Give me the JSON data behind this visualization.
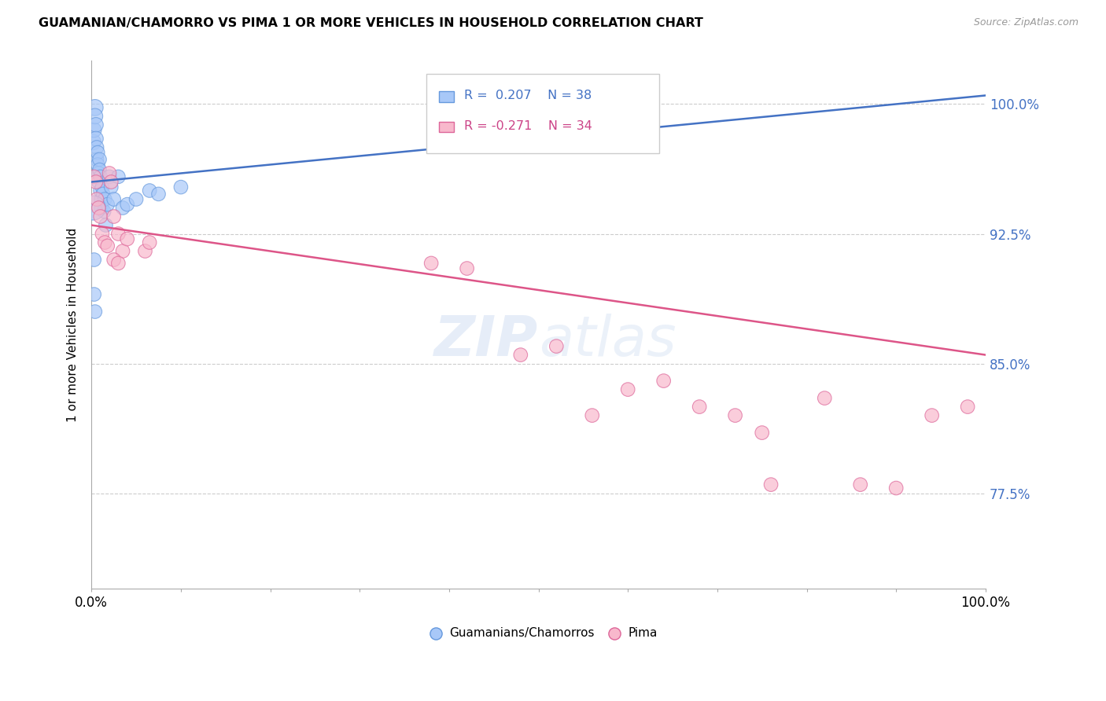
{
  "title": "GUAMANIAN/CHAMORRO VS PIMA 1 OR MORE VEHICLES IN HOUSEHOLD CORRELATION CHART",
  "source": "Source: ZipAtlas.com",
  "ylabel": "1 or more Vehicles in Household",
  "xlim": [
    0.0,
    1.0
  ],
  "ylim": [
    0.72,
    1.025
  ],
  "yticks": [
    0.775,
    0.85,
    0.925,
    1.0
  ],
  "ytick_labels": [
    "77.5%",
    "85.0%",
    "92.5%",
    "100.0%"
  ],
  "xticks": [
    0.0,
    0.1,
    0.2,
    0.3,
    0.4,
    0.5,
    0.6,
    0.7,
    0.8,
    0.9,
    1.0
  ],
  "xtick_labels": [
    "0.0%",
    "",
    "",
    "",
    "",
    "",
    "",
    "",
    "",
    "",
    "100.0%"
  ],
  "guamanian_color": "#a8c8f8",
  "guamanian_edge": "#6699dd",
  "pima_color": "#f8b8cc",
  "pima_edge": "#dd6699",
  "legend_blue_color": "#4472c4",
  "legend_pink_color": "#cc4488",
  "trendline_blue": "#4472c4",
  "trendline_pink": "#dd5588",
  "R_guamanian": 0.207,
  "N_guamanian": 38,
  "R_pima": -0.271,
  "N_pima": 34,
  "blue_trend_start": 0.955,
  "blue_trend_end": 1.005,
  "pink_trend_start": 0.93,
  "pink_trend_end": 0.855,
  "guamanian_x": [
    0.002,
    0.003,
    0.004,
    0.004,
    0.005,
    0.005,
    0.006,
    0.006,
    0.007,
    0.007,
    0.008,
    0.008,
    0.009,
    0.009,
    0.01,
    0.01,
    0.011,
    0.011,
    0.012,
    0.013,
    0.014,
    0.015,
    0.016,
    0.018,
    0.02,
    0.022,
    0.025,
    0.03,
    0.035,
    0.04,
    0.002,
    0.05,
    0.065,
    0.075,
    0.1,
    0.003,
    0.003,
    0.004
  ],
  "guamanian_y": [
    0.978,
    0.985,
    0.998,
    0.993,
    0.988,
    0.98,
    0.975,
    0.968,
    0.972,
    0.965,
    0.96,
    0.955,
    0.968,
    0.962,
    0.958,
    0.95,
    0.945,
    0.94,
    0.952,
    0.948,
    0.938,
    0.945,
    0.93,
    0.942,
    0.958,
    0.952,
    0.945,
    0.958,
    0.94,
    0.942,
    0.94,
    0.945,
    0.95,
    0.948,
    0.952,
    0.91,
    0.89,
    0.88
  ],
  "guamanian_sizes": [
    200,
    180,
    220,
    200,
    180,
    180,
    160,
    160,
    160,
    160,
    160,
    160,
    160,
    160,
    160,
    160,
    160,
    160,
    160,
    160,
    160,
    160,
    160,
    160,
    160,
    160,
    160,
    160,
    160,
    160,
    500,
    160,
    160,
    160,
    160,
    160,
    160,
    160
  ],
  "pima_x": [
    0.003,
    0.005,
    0.006,
    0.008,
    0.01,
    0.012,
    0.015,
    0.018,
    0.02,
    0.022,
    0.025,
    0.03,
    0.035,
    0.04,
    0.06,
    0.065,
    0.025,
    0.03,
    0.38,
    0.42,
    0.48,
    0.52,
    0.56,
    0.6,
    0.64,
    0.68,
    0.72,
    0.75,
    0.76,
    0.82,
    0.86,
    0.9,
    0.94,
    0.98
  ],
  "pima_y": [
    0.958,
    0.955,
    0.945,
    0.94,
    0.935,
    0.925,
    0.92,
    0.918,
    0.96,
    0.955,
    0.935,
    0.925,
    0.915,
    0.922,
    0.915,
    0.92,
    0.91,
    0.908,
    0.908,
    0.905,
    0.855,
    0.86,
    0.82,
    0.835,
    0.84,
    0.825,
    0.82,
    0.81,
    0.78,
    0.83,
    0.78,
    0.778,
    0.82,
    0.825
  ],
  "pima_sizes": [
    160,
    160,
    160,
    160,
    160,
    160,
    160,
    160,
    160,
    160,
    160,
    160,
    160,
    160,
    160,
    160,
    160,
    160,
    160,
    160,
    160,
    160,
    160,
    160,
    160,
    160,
    160,
    160,
    160,
    160,
    160,
    160,
    160,
    160
  ]
}
